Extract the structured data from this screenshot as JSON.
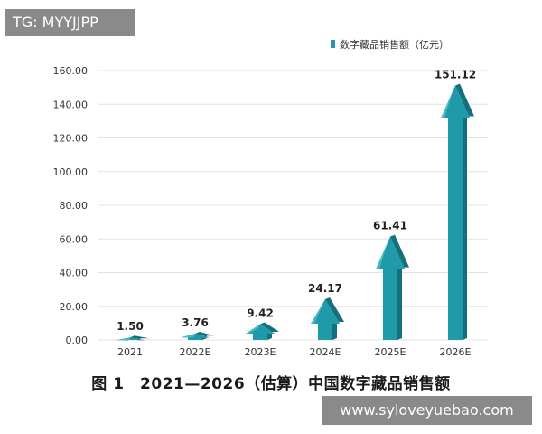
{
  "watermarks": {
    "top_left": "TG: MYYJJPP",
    "bottom_right": "www.syloveyuebao.com"
  },
  "caption": "图 1　2021—2026（估算）中国数字藏品销售额",
  "colors": {
    "arrow_front": "#1f9aa8",
    "arrow_side": "#13707c",
    "arrow_top": "#5cc4cf",
    "grid": "#e3e3e3"
  },
  "chart_data": {
    "type": "bar",
    "categories": [
      "2021",
      "2022E",
      "2023E",
      "2024E",
      "2025E",
      "2026E"
    ],
    "series": [
      {
        "name": "数字藏品销售额（亿元）",
        "values": [
          1.5,
          3.76,
          9.42,
          24.17,
          61.41,
          151.12
        ],
        "labels": [
          "1.50",
          "3.76",
          "9.42",
          "24.17",
          "61.41",
          "151.12"
        ]
      }
    ],
    "yticks": [
      "0.00",
      "20.00",
      "40.00",
      "60.00",
      "80.00",
      "100.00",
      "120.00",
      "140.00",
      "160.00"
    ],
    "ylim": [
      0,
      160
    ],
    "grid": true,
    "legend": "top-right"
  }
}
